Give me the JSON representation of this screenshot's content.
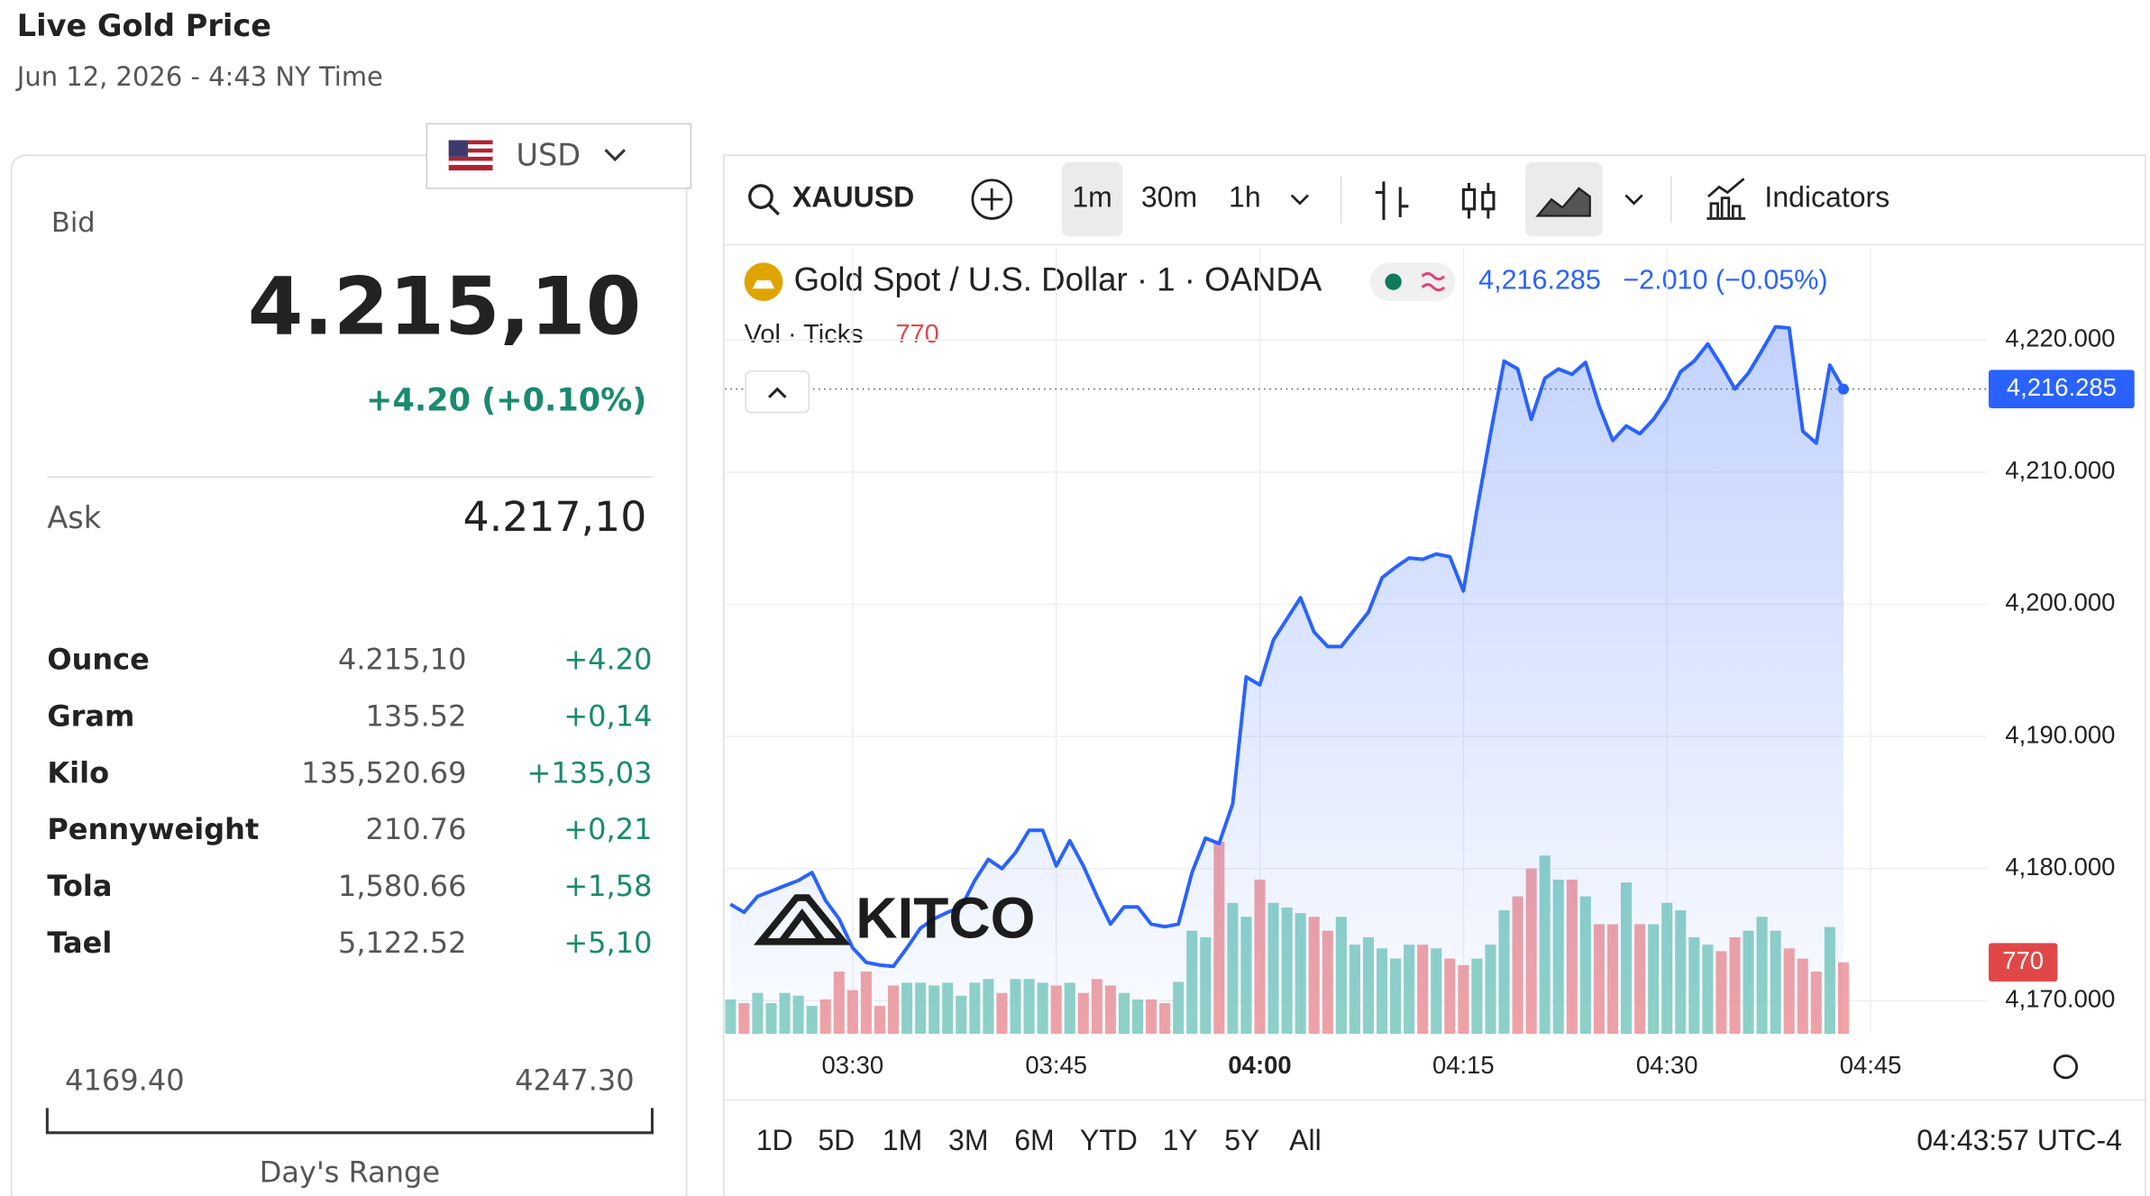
{
  "header": {
    "title": "Live Gold Price",
    "date": "Jun 12, 2026 - 4:43 NY Time"
  },
  "panel": {
    "currency": "USD",
    "bid_label": "Bid",
    "bid": "4.215,10",
    "change": "+4.20 (+0.10%)",
    "ask_label": "Ask",
    "ask": "4.217,10",
    "rows": [
      [
        "Ounce",
        "4.215,10",
        "+4.20"
      ],
      [
        "Gram",
        "135.52",
        "+0,14"
      ],
      [
        "Kilo",
        "135,520.69",
        "+135,03"
      ],
      [
        "Pennyweight",
        "210.76",
        "+0,21"
      ],
      [
        "Tola",
        "1,580.66",
        "+1,58"
      ],
      [
        "Tael",
        "5,122.52",
        "+5,10"
      ]
    ],
    "range_low": "4169.40",
    "range_high": "4247.30",
    "range_label": "Day's Range"
  },
  "toolbar": {
    "symbol": "XAUUSD",
    "intervals": [
      "1m",
      "30m",
      "1h"
    ],
    "indicators": "Indicators"
  },
  "footer": {
    "ranges": [
      "1D",
      "5D",
      "1M",
      "3M",
      "6M",
      "YTD",
      "1Y",
      "5Y",
      "All"
    ],
    "time": "04:43:57 UTC-4"
  },
  "chart_data": {
    "type": "line",
    "title": "Gold Spot / U.S. Dollar · 1 · OANDA",
    "last_label": "4,216.285",
    "change_label": "−2.010 (−0.05%)",
    "volume_title": "Vol · Ticks",
    "volume_label": "770",
    "watermark": "KITCO",
    "x": [
      201,
      202,
      203,
      204,
      205,
      206,
      207,
      208,
      209,
      210,
      211,
      212,
      213,
      214,
      215,
      216,
      217,
      218,
      219,
      220,
      221,
      222,
      223,
      224,
      225,
      226,
      227,
      228,
      229,
      230,
      231,
      232,
      233,
      234,
      235,
      236,
      237,
      238,
      239,
      240,
      241,
      242,
      243,
      244,
      245,
      246,
      247,
      248,
      249,
      250,
      251,
      252,
      253,
      254,
      255,
      256,
      257,
      258,
      259,
      260,
      261,
      262,
      263,
      264,
      265,
      266,
      267,
      268,
      269,
      270,
      271,
      272,
      273,
      274,
      275,
      276,
      277,
      278,
      279,
      280,
      281,
      282,
      283
    ],
    "series": [
      {
        "name": "XAUUSD",
        "color": "#2962ff",
        "values": [
          4177.3,
          4176.7,
          4177.9,
          4178.3,
          4178.7,
          4179.1,
          4179.7,
          4177.6,
          4176.2,
          4174.0,
          4172.9,
          4172.7,
          4172.6,
          4174.0,
          4175.5,
          4176.2,
          4176.7,
          4177.1,
          4179.1,
          4180.7,
          4180.0,
          4181.2,
          4182.9,
          4182.9,
          4180.2,
          4182.1,
          4180.2,
          4177.9,
          4175.8,
          4177.1,
          4177.1,
          4175.8,
          4175.6,
          4175.8,
          4179.7,
          4182.3,
          4181.9,
          4184.9,
          4194.5,
          4193.9,
          4197.3,
          4198.9,
          4200.5,
          4197.9,
          4196.8,
          4196.8,
          4198.1,
          4199.4,
          4202.0,
          4202.8,
          4203.5,
          4203.4,
          4203.8,
          4203.6,
          4201.0,
          4207.2,
          4212.9,
          4218.4,
          4217.8,
          4214.0,
          4217.1,
          4217.8,
          4217.4,
          4218.3,
          4215.0,
          4212.4,
          4213.5,
          4212.9,
          4214.0,
          4215.5,
          4217.6,
          4218.4,
          4219.7,
          4218.1,
          4216.3,
          4217.5,
          4219.2,
          4221.0,
          4220.9,
          4213.1,
          4212.2,
          4218.1,
          4216.285
        ]
      },
      {
        "name": "Vol",
        "axis": "y2",
        "up_color": "#8fd3c7",
        "down_color": "#f2a3a5",
        "values": [
          370,
          330,
          440,
          330,
          440,
          410,
          300,
          370,
          670,
          470,
          670,
          300,
          520,
          550,
          550,
          520,
          550,
          410,
          550,
          590,
          440,
          590,
          590,
          550,
          520,
          550,
          440,
          590,
          520,
          440,
          370,
          370,
          330,
          560,
          1110,
          1040,
          2070,
          1410,
          1260,
          1660,
          1410,
          1360,
          1300,
          1260,
          1110,
          1260,
          960,
          1040,
          920,
          810,
          960,
          960,
          920,
          810,
          740,
          810,
          960,
          1330,
          1480,
          1780,
          1920,
          1660,
          1660,
          1480,
          1180,
          1180,
          1630,
          1180,
          1180,
          1410,
          1330,
          1040,
          960,
          890,
          1040,
          1110,
          1260,
          1110,
          920,
          810,
          670,
          1150,
          770
        ]
      }
    ],
    "xlim": [
      200.6,
      293.6
    ],
    "xticks": [
      {
        "value": 210,
        "label": "03:30"
      },
      {
        "value": 225,
        "label": "03:45"
      },
      {
        "value": 240,
        "label": "04:00"
      },
      {
        "value": 255,
        "label": "04:15"
      },
      {
        "value": 270,
        "label": "04:30"
      },
      {
        "value": 285,
        "label": "04:45"
      }
    ],
    "ylim": [
      4167.5,
      4227
    ],
    "yticks": [
      {
        "value": 4170,
        "label": "4,170.000"
      },
      {
        "value": 4180,
        "label": "4,180.000"
      },
      {
        "value": 4190,
        "label": "4,190.000"
      },
      {
        "value": 4200,
        "label": "4,200.000"
      },
      {
        "value": 4210,
        "label": "4,210.000"
      },
      {
        "value": 4220,
        "label": "4,220.000"
      }
    ],
    "y2lim": [
      0,
      8470
    ],
    "grid": true
  }
}
